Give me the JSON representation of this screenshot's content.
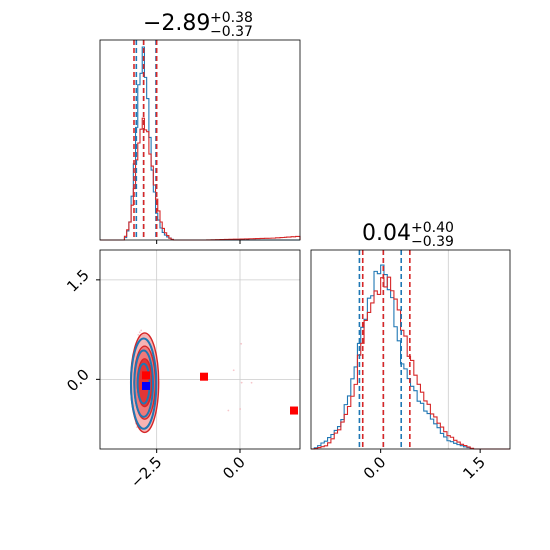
{
  "chart_data": {
    "type": "corner",
    "parameters": [
      "",
      ""
    ],
    "panels": {
      "hist_p1": {
        "title": {
          "median": "−2.89",
          "plus": "+0.38",
          "minus": "−0.37"
        },
        "xlim": [
          -4.2,
          1.8
        ],
        "quantile_lines": {
          "blue": [
            -3.11,
            -2.89,
            -2.52
          ],
          "red": [
            -3.18,
            -2.89,
            -2.5
          ]
        },
        "series": [
          {
            "color": "#1f77b4",
            "x": [
              -3.5,
              -3.4,
              -3.3,
              -3.2,
              -3.1,
              -3.0,
              -2.9,
              -2.8,
              -2.7,
              -2.6,
              -2.5,
              -2.4,
              -2.3,
              -2.2,
              -2.1,
              -2.0
            ],
            "density": [
              0.0,
              0.02,
              0.1,
              0.3,
              0.62,
              0.9,
              1.0,
              0.85,
              0.55,
              0.3,
              0.15,
              0.08,
              0.04,
              0.02,
              0.01,
              0.0
            ]
          },
          {
            "color": "#d62728",
            "x": [
              -3.5,
              -3.4,
              -3.3,
              -3.2,
              -3.1,
              -3.0,
              -2.9,
              -2.8,
              -2.7,
              -2.6,
              -2.5,
              -2.4,
              -2.3,
              -2.2,
              -2.1,
              -2.0,
              -1.0,
              1.0,
              1.8
            ],
            "density": [
              0.0,
              0.03,
              0.1,
              0.22,
              0.42,
              0.58,
              0.64,
              0.6,
              0.48,
              0.34,
              0.22,
              0.12,
              0.06,
              0.03,
              0.01,
              0.0,
              0.0,
              0.01,
              0.02
            ]
          }
        ]
      },
      "hist_p2": {
        "title": {
          "median": "0.04",
          "plus": "+0.40",
          "minus": "−0.39"
        },
        "xlim": [
          -1.05,
          1.95
        ],
        "quantile_lines": {
          "blue": [
            -0.32,
            0.04,
            0.31
          ],
          "red": [
            -0.27,
            0.04,
            0.44
          ]
        },
        "series": [
          {
            "color": "#1f77b4",
            "x": [
              -1.0,
              -0.8,
              -0.6,
              -0.4,
              -0.3,
              -0.2,
              -0.1,
              0.0,
              0.1,
              0.2,
              0.3,
              0.4,
              0.6,
              0.8,
              1.0,
              1.2,
              1.4
            ],
            "density": [
              0.0,
              0.05,
              0.13,
              0.4,
              0.62,
              0.75,
              0.9,
              1.0,
              0.92,
              0.75,
              0.5,
              0.4,
              0.25,
              0.15,
              0.05,
              0.02,
              0.0
            ]
          },
          {
            "color": "#d62728",
            "x": [
              -1.0,
              -0.8,
              -0.6,
              -0.4,
              -0.3,
              -0.2,
              -0.1,
              0.0,
              0.1,
              0.2,
              0.3,
              0.4,
              0.6,
              0.8,
              1.0,
              1.2,
              1.4
            ],
            "density": [
              0.0,
              0.02,
              0.12,
              0.3,
              0.55,
              0.72,
              0.82,
              0.88,
              0.92,
              0.85,
              0.7,
              0.55,
              0.32,
              0.18,
              0.08,
              0.03,
              0.0
            ]
          }
        ]
      },
      "scatter_2d": {
        "xlim": [
          -4.2,
          1.8
        ],
        "ylim": [
          -1.05,
          1.95
        ],
        "contour_center": [
          -2.86,
          -0.05
        ],
        "red_contours": {
          "color": "#d62728",
          "rx": [
            0.42,
            0.32,
            0.22
          ],
          "ry": [
            0.75,
            0.55,
            0.36
          ]
        },
        "blue_contours": {
          "color": "#1f77b4",
          "rx": [
            0.38,
            0.28,
            0.18
          ],
          "ry": [
            0.68,
            0.5,
            0.3
          ]
        },
        "markers": [
          {
            "color": "#ff0000",
            "x": -2.82,
            "y": 0.06
          },
          {
            "color": "#ff0000",
            "x": -1.08,
            "y": 0.04
          },
          {
            "color": "#ff0000",
            "x": 1.62,
            "y": -0.47
          },
          {
            "color": "#0000ff",
            "x": -2.82,
            "y": -0.1
          }
        ]
      }
    },
    "ticks": {
      "x": [
        {
          "value": -2.5,
          "label": "−2.5"
        },
        {
          "value": 0.0,
          "label": "0.0"
        }
      ],
      "y": [
        {
          "value": 0.0,
          "label": "0.0"
        },
        {
          "value": 1.5,
          "label": "1.5"
        }
      ],
      "x_p2": [
        {
          "value": 0.0,
          "label": "0.0"
        },
        {
          "value": 1.5,
          "label": "1.5"
        }
      ]
    },
    "grid": true,
    "colors": {
      "series_a": "#1f77b4",
      "series_b": "#d62728",
      "marker_red": "#ff0000",
      "marker_blue": "#0000ff"
    }
  }
}
